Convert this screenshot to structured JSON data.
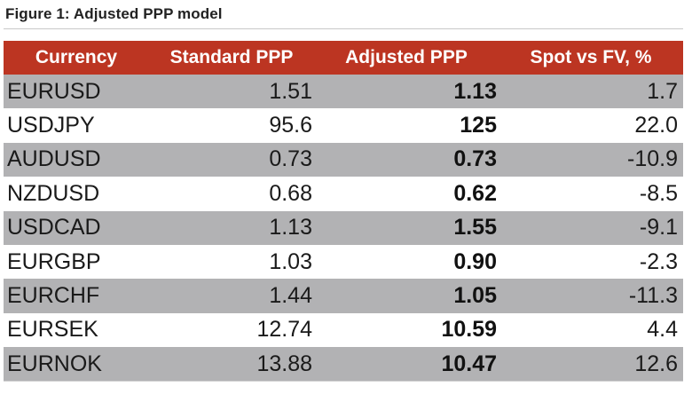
{
  "figure": {
    "title": "Figure 1: Adjusted PPP model"
  },
  "table": {
    "headers": [
      "Currency",
      "Standard PPP",
      "Adjusted PPP",
      "Spot vs FV, %"
    ],
    "rows": [
      {
        "currency": "EURUSD",
        "standard": "1.51",
        "adjusted": "1.13",
        "spot_vs_fv": "1.7"
      },
      {
        "currency": "USDJPY",
        "standard": "95.6",
        "adjusted": "125",
        "spot_vs_fv": "22.0"
      },
      {
        "currency": "AUDUSD",
        "standard": "0.73",
        "adjusted": "0.73",
        "spot_vs_fv": "-10.9"
      },
      {
        "currency": "NZDUSD",
        "standard": "0.68",
        "adjusted": "0.62",
        "spot_vs_fv": "-8.5"
      },
      {
        "currency": "USDCAD",
        "standard": "1.13",
        "adjusted": "1.55",
        "spot_vs_fv": "-9.1"
      },
      {
        "currency": "EURGBP",
        "standard": "1.03",
        "adjusted": "0.90",
        "spot_vs_fv": "-2.3"
      },
      {
        "currency": "EURCHF",
        "standard": "1.44",
        "adjusted": "1.05",
        "spot_vs_fv": "-11.3"
      },
      {
        "currency": "EURSEK",
        "standard": "12.74",
        "adjusted": "10.59",
        "spot_vs_fv": "4.4"
      },
      {
        "currency": "EURNOK",
        "standard": "13.88",
        "adjusted": "10.47",
        "spot_vs_fv": "12.6"
      }
    ]
  },
  "colors": {
    "header_bg": "#bc3522",
    "header_text": "#ffffff",
    "shaded_row": "#b2b2b4",
    "plain_row": "#ffffff"
  }
}
